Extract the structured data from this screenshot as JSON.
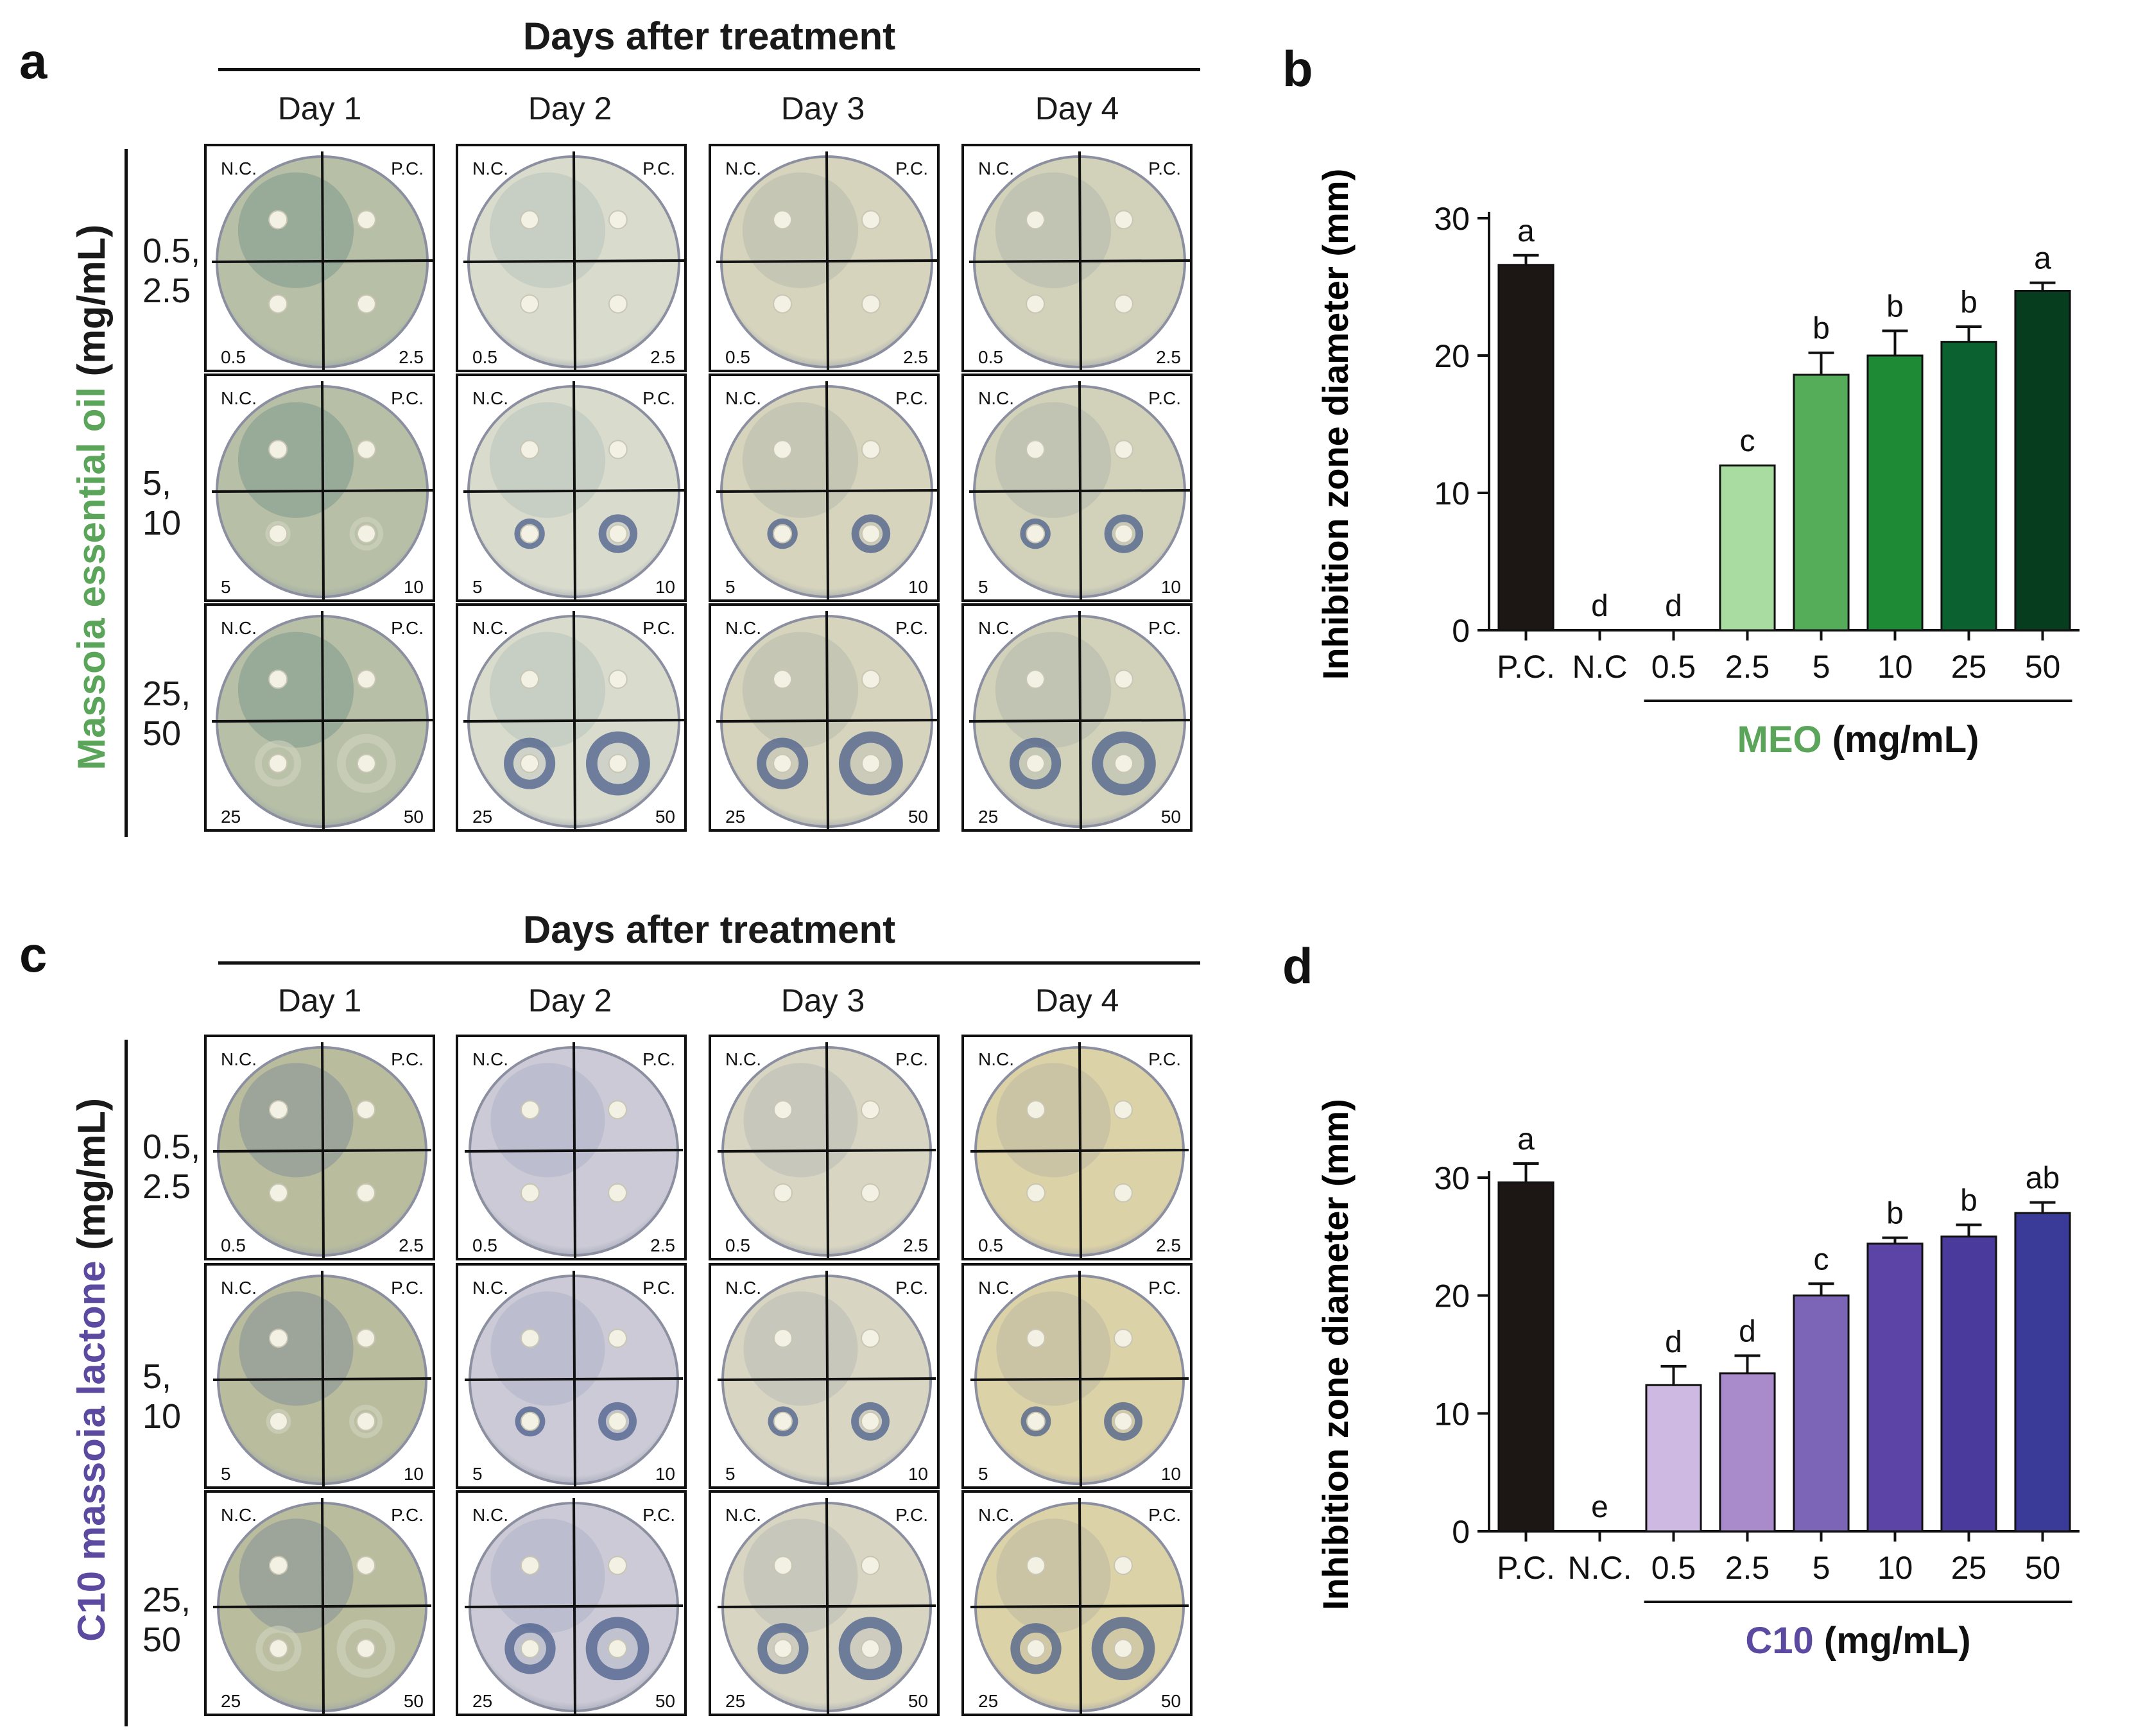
{
  "panels": {
    "a": {
      "letter": "a",
      "title": "Days after treatment",
      "days": [
        "Day 1",
        "Day 2",
        "Day 3",
        "Day 4"
      ],
      "row_labels": [
        "0.5,\n2.5",
        "5,\n10",
        "25,\n50"
      ],
      "side_title": {
        "part1": "Massoia essential oil",
        "part2": " (mg/mL)"
      },
      "rows": [
        {
          "q": [
            "N.C.",
            "P.C.",
            "0.5",
            "2.5"
          ]
        },
        {
          "q": [
            "N.C.",
            "P.C.",
            "5",
            "10"
          ]
        },
        {
          "q": [
            "N.C.",
            "P.C.",
            "25",
            "50"
          ]
        }
      ]
    },
    "b": {
      "letter": "b",
      "axis_title": "Inhibition zone diameter (mm)",
      "group_label": "MEO",
      "unit_label": " (mg/mL)"
    },
    "c": {
      "letter": "c",
      "title": "Days after treatment",
      "days": [
        "Day 1",
        "Day 2",
        "Day 3",
        "Day 4"
      ],
      "row_labels": [
        "0.5,\n2.5",
        "5,\n10",
        "25,\n50"
      ],
      "side_title": {
        "part1": "C10 massoia lactone",
        "part2": " (mg/mL)"
      },
      "rows": [
        {
          "q": [
            "N.C.",
            "P.C.",
            "0.5",
            "2.5"
          ]
        },
        {
          "q": [
            "N.C.",
            "P.C.",
            "5",
            "10"
          ]
        },
        {
          "q": [
            "N.C.",
            "P.C.",
            "25",
            "50"
          ]
        }
      ]
    },
    "d": {
      "letter": "d",
      "axis_title": "Inhibition zone diameter (mm)",
      "group_label": "C10",
      "unit_label": " (mg/mL)"
    }
  },
  "colors": {
    "meo_accent": "#5aa55a",
    "c10_accent": "#5b4aa0",
    "plate_a": [
      "#b7c0a6",
      "#d9dccd",
      "#d6d4bd",
      "#d2d1ba"
    ],
    "plate_c": [
      "#b9bd9e",
      "#cbcad6",
      "#d8d5c2",
      "#dcd2a8"
    ]
  },
  "chart_data": [
    {
      "type": "bar",
      "panel": "b",
      "categories": [
        "P.C.",
        "N.C",
        "0.5",
        "2.5",
        "5",
        "10",
        "25",
        "50"
      ],
      "values": [
        26.6,
        0,
        0,
        12.0,
        18.6,
        20.0,
        21.0,
        24.7
      ],
      "errors": [
        0.7,
        0,
        0,
        0,
        1.6,
        1.8,
        1.1,
        0.6
      ],
      "letters": [
        "a",
        "d",
        "d",
        "c",
        "b",
        "b",
        "b",
        "a"
      ],
      "bar_colors": [
        "#1c1614",
        "#ffffff",
        "#ffffff",
        "#a8dca0",
        "#55ad5a",
        "#1f8a35",
        "#0b6230",
        "#063d1e"
      ],
      "ylim": [
        0,
        30
      ],
      "yticks": [
        0,
        10,
        20,
        30
      ],
      "ylabel": "Inhibition zone diameter (mm)",
      "xlabel": "MEO (mg/mL)"
    },
    {
      "type": "bar",
      "panel": "d",
      "categories": [
        "P.C.",
        "N.C.",
        "0.5",
        "2.5",
        "5",
        "10",
        "25",
        "50"
      ],
      "values": [
        29.6,
        0,
        12.4,
        13.4,
        20.0,
        24.4,
        25.0,
        27.0
      ],
      "errors": [
        1.6,
        0,
        1.6,
        1.5,
        1.0,
        0.5,
        1.0,
        0.9
      ],
      "letters": [
        "a",
        "e",
        "d",
        "d",
        "c",
        "b",
        "b",
        "ab"
      ],
      "bar_colors": [
        "#1c1614",
        "#ffffff",
        "#cdb9e2",
        "#a98bcb",
        "#7c64b6",
        "#5c43a6",
        "#4a3a9c",
        "#3a3a98"
      ],
      "ylim": [
        0,
        30
      ],
      "yticks": [
        0,
        10,
        20,
        30
      ],
      "ylabel": "Inhibition zone diameter (mm)",
      "xlabel": "C10 (mg/mL)"
    }
  ]
}
